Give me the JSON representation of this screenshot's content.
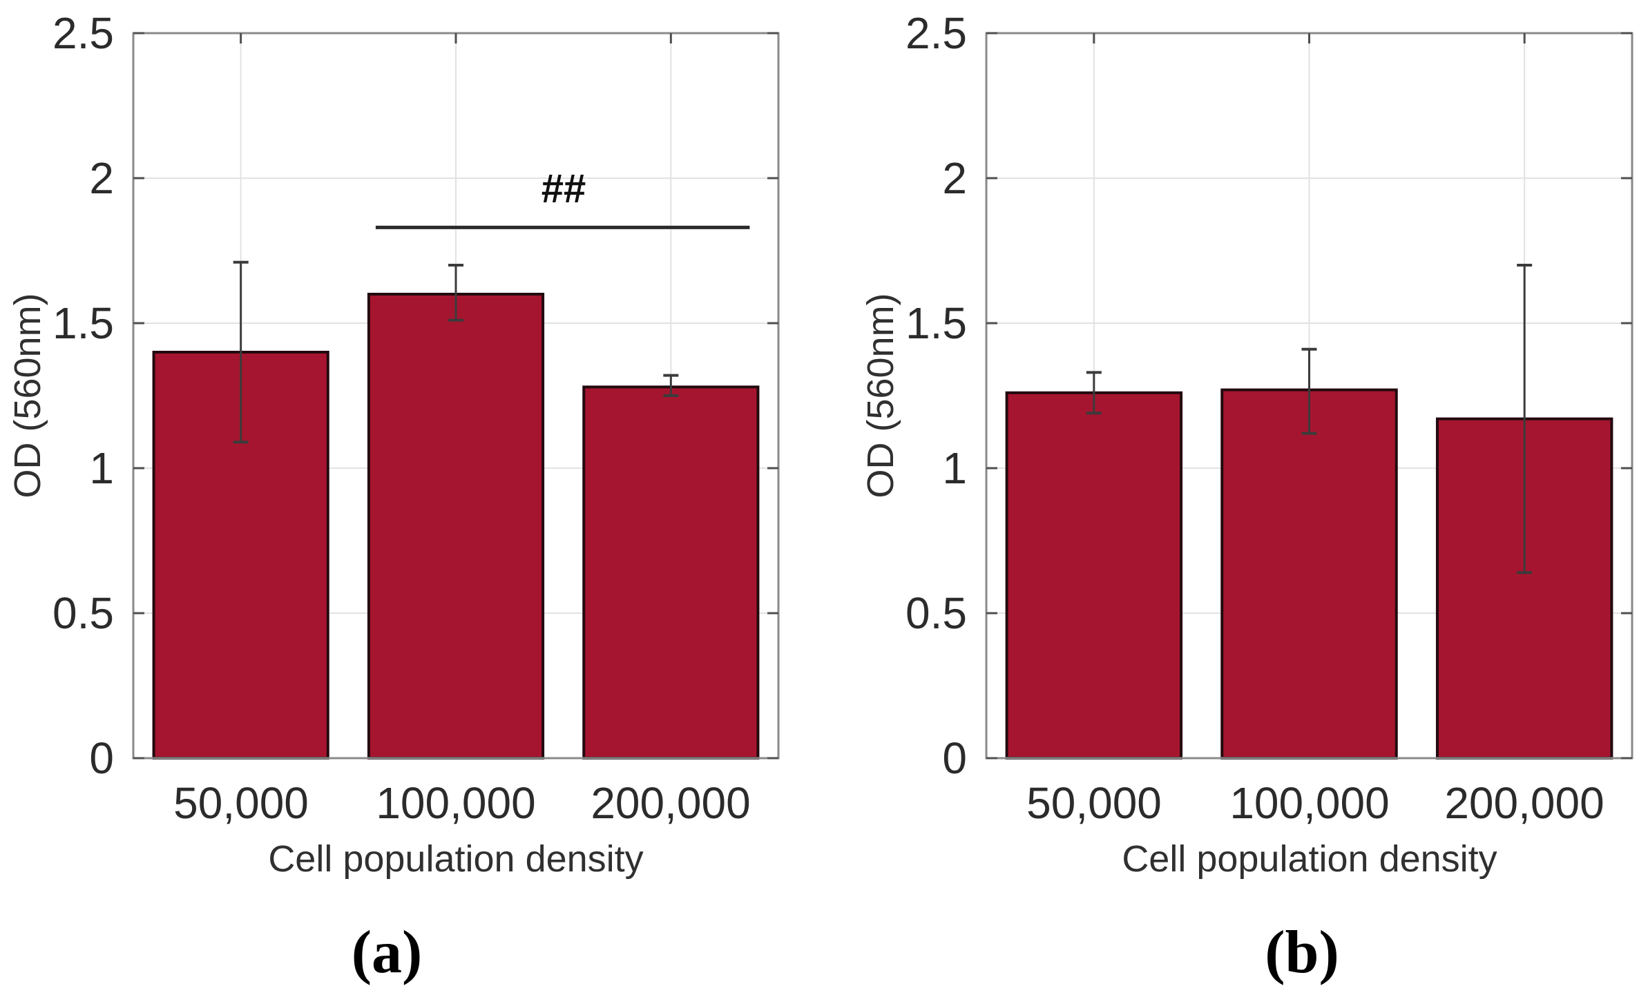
{
  "colors": {
    "bar_fill": "#a6152f",
    "bar_edge": "#230a10",
    "error_bar": "#3b3b3b",
    "axis_box": "#8a8a8a",
    "tick_mark": "#4f4f4f",
    "gridline": "#e2e2e2",
    "significance_line": "#2b2b2b"
  },
  "chart_data": [
    {
      "type": "bar",
      "panel_label": "(a)",
      "title": "",
      "xlabel": "Cell population density",
      "ylabel": "OD (560nm)",
      "categories": [
        "50,000",
        "100,000",
        "200,000"
      ],
      "values": [
        1.4,
        1.6,
        1.28
      ],
      "error_bars": {
        "upper": [
          1.71,
          1.7,
          1.32
        ],
        "lower": [
          1.09,
          1.51,
          1.25
        ]
      },
      "ylim": [
        0,
        2.5
      ],
      "yticks": [
        "0",
        "0.5",
        "1",
        "1.5",
        "2",
        "2.5"
      ],
      "grid": true,
      "legend_position": "none",
      "annotations": [
        {
          "label": "##",
          "span_bars": [
            1,
            2
          ],
          "line_y": 1.83
        }
      ]
    },
    {
      "type": "bar",
      "panel_label": "(b)",
      "title": "",
      "xlabel": "Cell population density",
      "ylabel": "OD (560nm)",
      "categories": [
        "50,000",
        "100,000",
        "200,000"
      ],
      "values": [
        1.26,
        1.27,
        1.17
      ],
      "error_bars": {
        "upper": [
          1.33,
          1.41,
          1.7
        ],
        "lower": [
          1.19,
          1.12,
          0.64
        ]
      },
      "ylim": [
        0,
        2.5
      ],
      "yticks": [
        "0",
        "0.5",
        "1",
        "1.5",
        "2",
        "2.5"
      ],
      "grid": true,
      "legend_position": "none",
      "annotations": []
    }
  ]
}
